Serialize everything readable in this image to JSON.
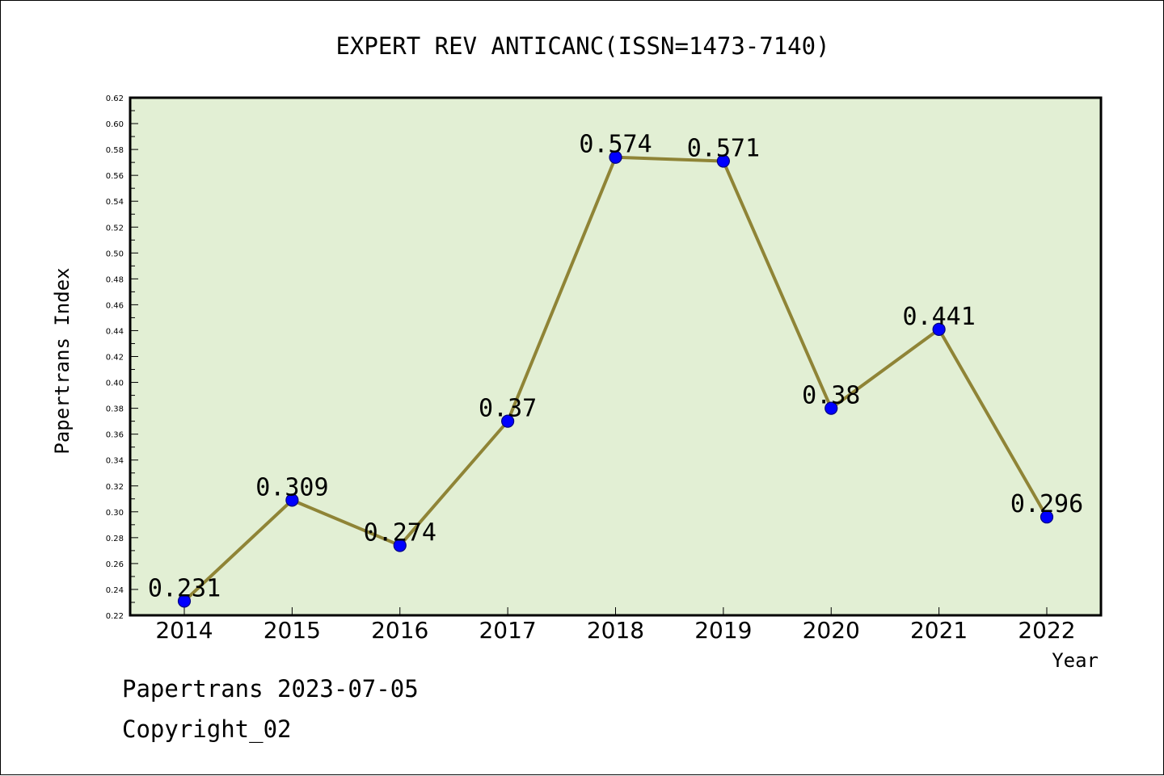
{
  "colors": {
    "plot_background": "#e2efd4",
    "line": "#8f8436",
    "marker": "#0000ff",
    "marker_edge": "#000080",
    "axis": "#000000"
  },
  "footer": {
    "source_date": "Papertrans 2023-07-05",
    "copyright": "Copyright_02"
  },
  "chart_data": {
    "type": "line",
    "title": "EXPERT REV ANTICANC(ISSN=1473-7140)",
    "xlabel": "Year",
    "ylabel": "Papertrans Index",
    "ylim": [
      0.22,
      0.62
    ],
    "y_tick_step": 0.02,
    "y_tick_labels": [
      "0.22",
      "0.24",
      "0.26",
      "0.28",
      "0.30",
      "0.32",
      "0.34",
      "0.36",
      "0.38",
      "0.40",
      "0.42",
      "0.44",
      "0.46",
      "0.48",
      "0.50",
      "0.52",
      "0.54",
      "0.56",
      "0.58",
      "0.60",
      "0.62"
    ],
    "grid": false,
    "legend": "none",
    "x": [
      "2014",
      "2015",
      "2016",
      "2017",
      "2018",
      "2019",
      "2020",
      "2021",
      "2022"
    ],
    "series": [
      {
        "values": [
          0.231,
          0.309,
          0.274,
          0.37,
          0.574,
          0.571,
          0.38,
          0.441,
          0.296
        ],
        "labels": [
          "0.231",
          "0.309",
          "0.274",
          "0.37",
          "0.574",
          "0.571",
          "0.38",
          "0.441",
          "0.296"
        ]
      }
    ]
  }
}
